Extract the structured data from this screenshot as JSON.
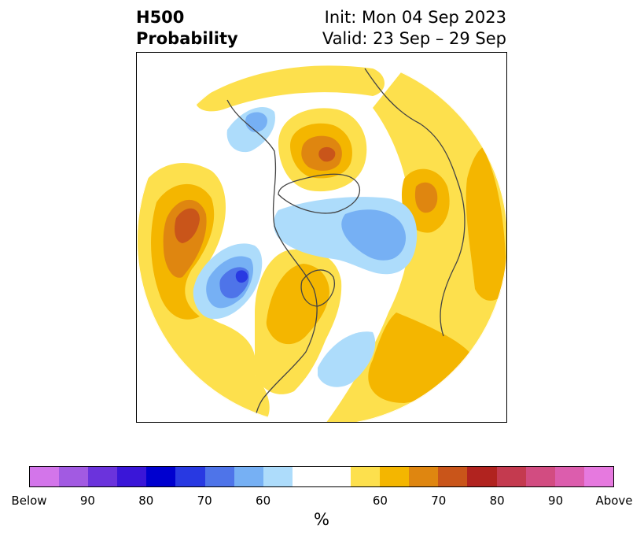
{
  "title": {
    "left_line1": "H500",
    "left_line2": "Probability",
    "right_line1": "Init: Mon 04 Sep 2023",
    "right_line2": "Valid: 23 Sep – 29 Sep"
  },
  "colorbar": {
    "unit": "%",
    "segments": [
      {
        "color": "#d375ea"
      },
      {
        "color": "#a25ae2"
      },
      {
        "color": "#6b33dc"
      },
      {
        "color": "#3a16d8"
      },
      {
        "color": "#0000cf"
      },
      {
        "color": "#2839e2"
      },
      {
        "color": "#4e74e9"
      },
      {
        "color": "#76b0f4"
      },
      {
        "color": "#addcfb"
      },
      {
        "color": "#ffffff"
      },
      {
        "color": "#ffffff"
      },
      {
        "color": "#fde04d"
      },
      {
        "color": "#f4b600"
      },
      {
        "color": "#df8610"
      },
      {
        "color": "#c9551a"
      },
      {
        "color": "#b1231f"
      },
      {
        "color": "#c43a4f"
      },
      {
        "color": "#d24c81"
      },
      {
        "color": "#dc5dad"
      },
      {
        "color": "#e679df"
      }
    ],
    "labels": [
      {
        "text": "Below",
        "edge": 0
      },
      {
        "text": "90",
        "edge": 2
      },
      {
        "text": "80",
        "edge": 4
      },
      {
        "text": "70",
        "edge": 6
      },
      {
        "text": "60",
        "edge": 8
      },
      {
        "text": "60",
        "edge": 12
      },
      {
        "text": "70",
        "edge": 14
      },
      {
        "text": "80",
        "edge": 16
      },
      {
        "text": "90",
        "edge": 18
      },
      {
        "text": "Above",
        "edge": 20
      }
    ]
  },
  "map": {
    "projection": "north-polar-stereographic",
    "colors": {
      "above_60": "#fde04d",
      "above_65": "#f4b600",
      "above_70": "#df8610",
      "above_75": "#c9551a",
      "below_60": "#addcfb",
      "below_65": "#76b0f4",
      "below_70": "#4e74e9",
      "below_75": "#2839e2",
      "coast": "#444444"
    }
  }
}
